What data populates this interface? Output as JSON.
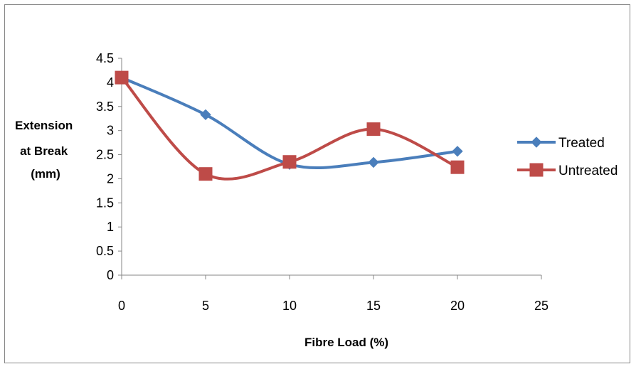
{
  "chart_data": {
    "type": "line",
    "smooth": true,
    "xlabel": "Fibre Load (%)",
    "ylabel_lines": [
      "Extension",
      "at Break",
      "(mm)"
    ],
    "xlim": [
      0,
      25
    ],
    "ylim": [
      0,
      4.5
    ],
    "x_ticks": [
      "0",
      "5",
      "10",
      "15",
      "20",
      "25"
    ],
    "y_ticks": [
      "0",
      "0.5",
      "1",
      "1.5",
      "2",
      "2.5",
      "3",
      "3.5",
      "4",
      "4.5"
    ],
    "grid": false,
    "legend_position": "right",
    "series": [
      {
        "name": "Treated",
        "color": "#4a7ebb",
        "marker": "diamond",
        "x": [
          0,
          5,
          10,
          15,
          20
        ],
        "y": [
          4.1,
          3.33,
          2.3,
          2.34,
          2.57
        ]
      },
      {
        "name": "Untreated",
        "color": "#be4b48",
        "marker": "square",
        "x": [
          0,
          5,
          10,
          15,
          20
        ],
        "y": [
          4.1,
          2.1,
          2.35,
          3.03,
          2.24
        ]
      }
    ]
  }
}
